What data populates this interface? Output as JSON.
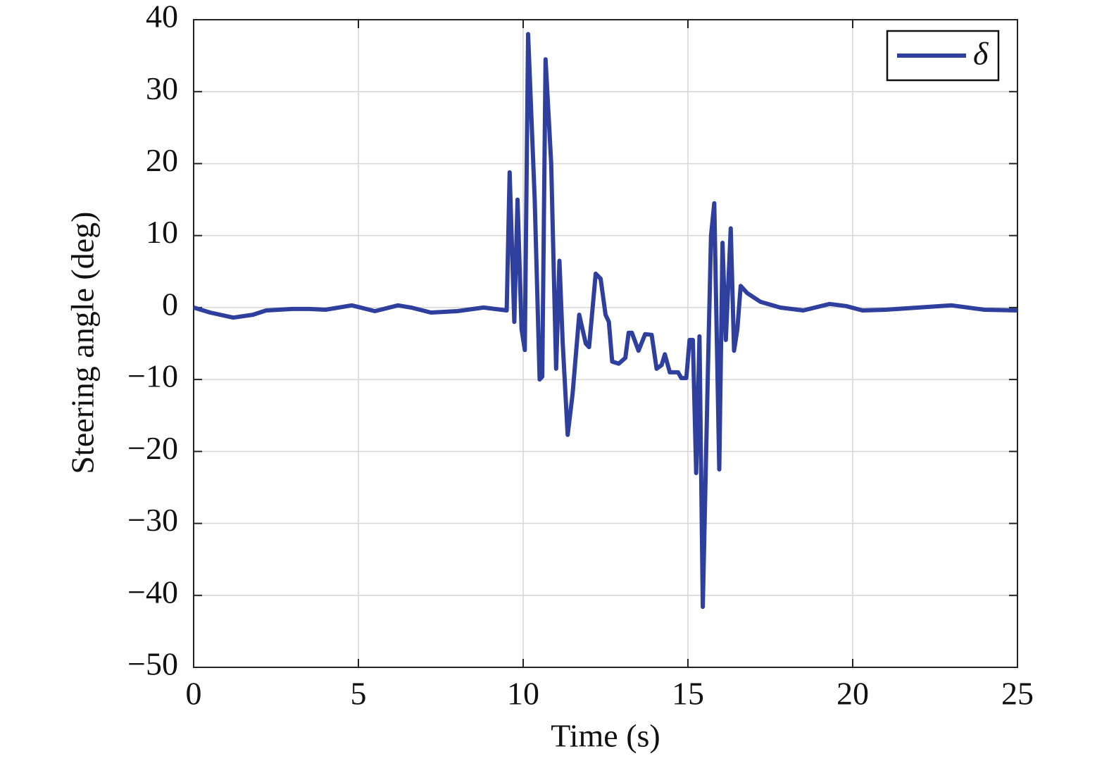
{
  "chart_data": {
    "type": "line",
    "xlabel": "Time (s)",
    "ylabel": "Steering angle (deg)",
    "x": [
      0,
      0.5,
      1.2,
      1.8,
      2.2,
      3,
      3.5,
      4,
      4.8,
      5.5,
      6.2,
      6.6,
      7.2,
      8,
      8.8,
      9.5,
      9.59,
      9.73,
      9.83,
      9.95,
      10.05,
      10.15,
      10.35,
      10.5,
      10.58,
      10.68,
      10.85,
      11.0,
      11.1,
      11.2,
      11.35,
      11.5,
      11.7,
      11.9,
      12.0,
      12.2,
      12.35,
      12.5,
      12.6,
      12.7,
      12.9,
      13.1,
      13.2,
      13.3,
      13.5,
      13.7,
      13.9,
      14.05,
      14.2,
      14.3,
      14.45,
      14.7,
      14.8,
      14.95,
      15.05,
      15.15,
      15.25,
      15.35,
      15.45,
      15.6,
      15.7,
      15.8,
      15.95,
      16.05,
      16.15,
      16.3,
      16.4,
      16.5,
      16.6,
      16.8,
      17.2,
      17.8,
      18.5,
      19.3,
      19.8,
      20.3,
      21,
      22,
      23,
      24,
      25
    ],
    "series": [
      {
        "name": "δ",
        "color": "#2e3f9e",
        "values": [
          0,
          -0.7,
          -1.4,
          -1.0,
          -0.4,
          -0.2,
          -0.2,
          -0.3,
          0.3,
          -0.5,
          0.3,
          0,
          -0.7,
          -0.5,
          0,
          -0.4,
          18.8,
          -2,
          15,
          -3,
          -5.9,
          38,
          15,
          -10,
          -9.6,
          34.5,
          20,
          -8.5,
          6.5,
          -5,
          -17.7,
          -12,
          -1,
          -5,
          -5.5,
          4.7,
          4,
          -1,
          -2,
          -7.5,
          -7.8,
          -7,
          -3.5,
          -3.5,
          -6,
          -3.7,
          -3.8,
          -8.5,
          -8,
          -6.5,
          -9,
          -9,
          -9.8,
          -9.8,
          -4.5,
          -4.5,
          -23,
          -4,
          -41.6,
          -10,
          10,
          14.5,
          -22.5,
          9,
          -4.5,
          11,
          -6,
          -3,
          3,
          2,
          0.8,
          0,
          -0.4,
          0.5,
          0.2,
          -0.4,
          -0.3,
          0,
          0.3,
          -0.3,
          -0.4
        ]
      }
    ],
    "xlim": [
      0,
      25
    ],
    "xticks": [
      0,
      5,
      10,
      15,
      20,
      25
    ],
    "ylim": [
      -50,
      40
    ],
    "yticks": [
      {
        "value": -50,
        "label": "−50"
      },
      {
        "value": -40,
        "label": "−40"
      },
      {
        "value": -30,
        "label": "−30"
      },
      {
        "value": -20,
        "label": "−20"
      },
      {
        "value": -10,
        "label": "−10"
      },
      0,
      10,
      20,
      30,
      40
    ],
    "grid": true,
    "legend": "upper right"
  }
}
